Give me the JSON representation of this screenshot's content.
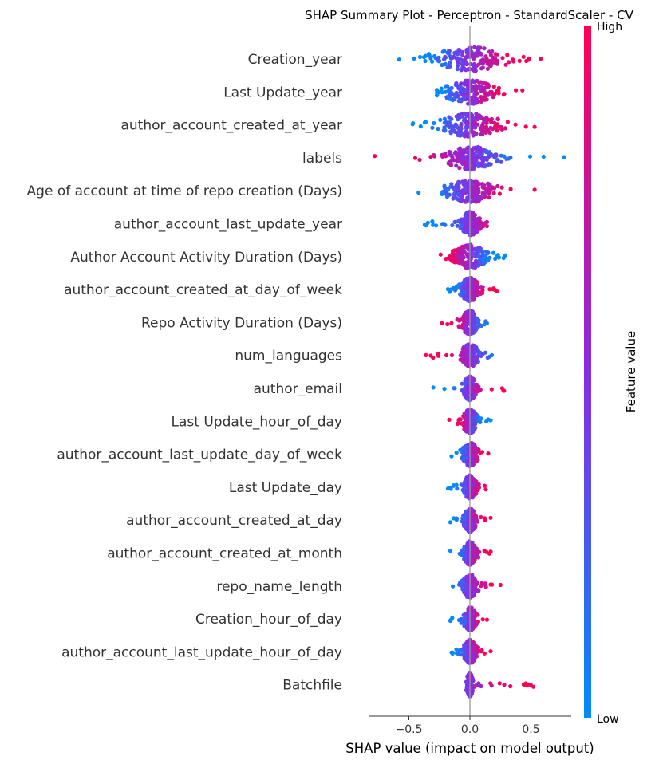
{
  "chart_data": {
    "type": "scatter",
    "subtype": "shap-beeswarm",
    "title": "SHAP Summary Plot - Perceptron - StandardScaler - CV",
    "xlabel": "SHAP value (impact on model output)",
    "ylabel": "",
    "xlim": [
      -0.83,
      0.83
    ],
    "xticks": [
      -0.5,
      0.0,
      0.5
    ],
    "xtick_labels": [
      "−0.5",
      "0.0",
      "0.5"
    ],
    "grid": false,
    "colorbar": {
      "label": "Feature value",
      "high_label": "High",
      "low_label": "Low",
      "high_color": "#ff0052",
      "low_color": "#008bfb",
      "mid_color": "#8a2be2"
    },
    "features": [
      {
        "name": "Creation_year",
        "min": -0.58,
        "max": 0.58,
        "low_side": "left",
        "core": 0.33
      },
      {
        "name": "Last Update_year",
        "min": -0.27,
        "max": 0.43,
        "low_side": "left",
        "core": 0.22
      },
      {
        "name": "author_account_created_at_year",
        "min": -0.47,
        "max": 0.53,
        "low_side": "left",
        "core": 0.25
      },
      {
        "name": "labels",
        "min": -0.78,
        "max": 0.77,
        "low_side": "right",
        "core": 0.22
      },
      {
        "name": "Age of account at time of repo creation (Days)",
        "min": -0.42,
        "max": 0.53,
        "low_side": "left",
        "core": 0.2
      },
      {
        "name": "author_account_last_update_year",
        "min": -0.37,
        "max": 0.14,
        "low_side": "left",
        "core": 0.08
      },
      {
        "name": "Author Account Activity Duration (Days)",
        "min": -0.24,
        "max": 0.29,
        "low_side": "right",
        "core": 0.14
      },
      {
        "name": "author_account_created_at_day_of_week",
        "min": -0.18,
        "max": 0.22,
        "low_side": "left",
        "core": 0.08
      },
      {
        "name": "Repo Activity Duration (Days)",
        "min": -0.23,
        "max": 0.14,
        "low_side": "right",
        "core": 0.07
      },
      {
        "name": "num_languages",
        "min": -0.36,
        "max": 0.18,
        "low_side": "right",
        "core": 0.07
      },
      {
        "name": "author_email",
        "min": -0.3,
        "max": 0.28,
        "low_side": "left",
        "core": 0.05
      },
      {
        "name": "Last Update_hour_of_day",
        "min": -0.17,
        "max": 0.17,
        "low_side": "right",
        "core": 0.06
      },
      {
        "name": "author_account_last_update_day_of_week",
        "min": -0.15,
        "max": 0.15,
        "low_side": "left",
        "core": 0.06
      },
      {
        "name": "Last Update_day",
        "min": -0.18,
        "max": 0.13,
        "low_side": "left",
        "core": 0.05
      },
      {
        "name": "author_account_created_at_day",
        "min": -0.16,
        "max": 0.17,
        "low_side": "left",
        "core": 0.05
      },
      {
        "name": "author_account_created_at_month",
        "min": -0.16,
        "max": 0.17,
        "low_side": "left",
        "core": 0.05
      },
      {
        "name": "repo_name_length",
        "min": -0.14,
        "max": 0.25,
        "low_side": "left",
        "core": 0.06
      },
      {
        "name": "Creation_hour_of_day",
        "min": -0.16,
        "max": 0.14,
        "low_side": "left",
        "core": 0.05
      },
      {
        "name": "author_account_last_update_hour_of_day",
        "min": -0.15,
        "max": 0.17,
        "low_side": "left",
        "core": 0.05
      },
      {
        "name": "Batchfile",
        "min": -0.03,
        "max": 0.52,
        "low_side": "left",
        "core": 0.02
      }
    ]
  }
}
